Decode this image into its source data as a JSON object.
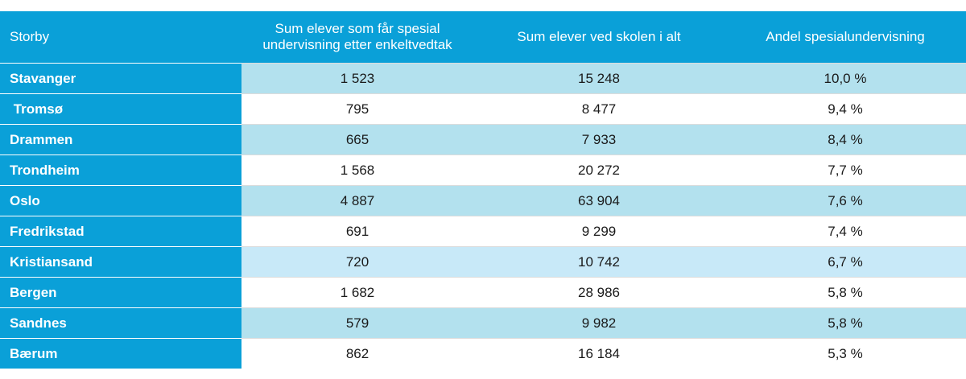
{
  "table": {
    "headers": {
      "city": "Storby",
      "special_ed": "Sum elever som får spesial undervisning etter enkeltvedtak",
      "total": "Sum elever ved skolen i alt",
      "share": "Andel spesialundervisning"
    },
    "rows": [
      {
        "city": "Stavanger",
        "special_ed": "1 523",
        "total": "15 248",
        "share": "10,0 %"
      },
      {
        "city": " Tromsø",
        "special_ed": "795",
        "total": "8 477",
        "share": "9,4 %"
      },
      {
        "city": "Drammen",
        "special_ed": "665",
        "total": "7 933",
        "share": "8,4 %"
      },
      {
        "city": "Trondheim",
        "special_ed": "1 568",
        "total": "20 272",
        "share": "7,7 %"
      },
      {
        "city": "Oslo",
        "special_ed": "4 887",
        "total": "63 904",
        "share": "7,6 %"
      },
      {
        "city": "Fredrikstad",
        "special_ed": "691",
        "total": "9 299",
        "share": "7,4 %"
      },
      {
        "city": "Kristiansand",
        "special_ed": "720",
        "total": "10 742",
        "share": "6,7 %"
      },
      {
        "city": "Bergen",
        "special_ed": "1 682",
        "total": "28 986",
        "share": "5,8 %"
      },
      {
        "city": "Sandnes",
        "special_ed": "579",
        "total": "9 982",
        "share": "5,8 %"
      },
      {
        "city": "Bærum",
        "special_ed": "862",
        "total": "16 184",
        "share": "5,3 %"
      }
    ]
  },
  "colors": {
    "header_blue": "#0aa0d8",
    "row_shade": "#b3e1ee",
    "row_alt": "#c8e9f8",
    "row_plain": "#ffffff"
  }
}
